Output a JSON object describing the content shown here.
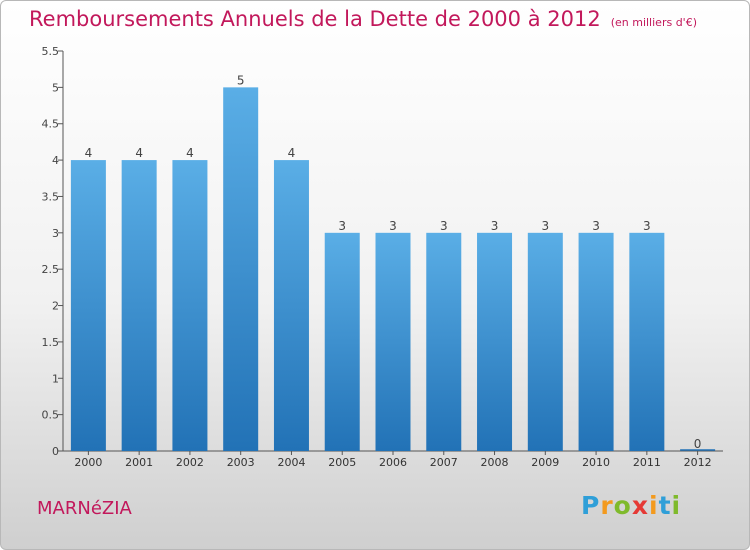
{
  "header": {
    "title": "Remboursements Annuels de la Dette de 2000 à 2012",
    "unit": "(en milliers d'€)"
  },
  "footer": {
    "commune": "MARNéZIA",
    "brand_letters": [
      {
        "ch": "P",
        "color": "#2f9fd8"
      },
      {
        "ch": "r",
        "color": "#f39a1e"
      },
      {
        "ch": "o",
        "color": "#7fba2c"
      },
      {
        "ch": "x",
        "color": "#e53935"
      },
      {
        "ch": "i",
        "color": "#f39a1e"
      },
      {
        "ch": "t",
        "color": "#2f9fd8"
      },
      {
        "ch": "i",
        "color": "#7fba2c"
      }
    ]
  },
  "colors": {
    "accent": "#c2185b",
    "bar_top": "#5aaee6",
    "bar_bottom": "#2272b6"
  },
  "chart_data": {
    "type": "bar",
    "title": "Remboursements Annuels de la Dette de 2000 à 2012",
    "subtitle": "(en milliers d'€)",
    "categories": [
      "2000",
      "2001",
      "2002",
      "2003",
      "2004",
      "2005",
      "2006",
      "2007",
      "2008",
      "2009",
      "2010",
      "2011",
      "2012"
    ],
    "values": [
      4,
      4,
      4,
      5,
      4,
      3,
      3,
      3,
      3,
      3,
      3,
      3,
      0
    ],
    "ylim": [
      0,
      5.5
    ],
    "yticks": [
      "0",
      "0.5",
      "1",
      "1.5",
      "2",
      "2.5",
      "3",
      "3.5",
      "4",
      "4.5",
      "5",
      "5.5"
    ],
    "grid": false,
    "legend": "none"
  }
}
